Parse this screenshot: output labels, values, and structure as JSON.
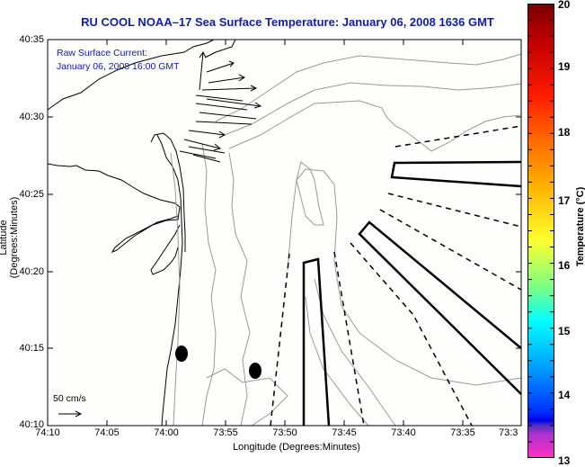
{
  "title": "RU COOL  NOAA–17  Sea Surface Temperature:  January 06, 2008 1636 GMT",
  "current_overlay": {
    "title": "Raw Surface Current:",
    "time": "January 06, 2008 16:00 GMT",
    "scale_label": "50 cm/s",
    "scale_arrow_icon": "right-arrow-icon"
  },
  "axes": {
    "xlabel": "Longitude (Degrees:Minutes)",
    "ylabel": "Latitude (Degrees:Minutes)",
    "xticks": [
      "74:10",
      "74:05",
      "74:00",
      "73:55",
      "73:50",
      "73:45",
      "73:40",
      "73:35",
      "73:3"
    ],
    "yticks": [
      "40:35",
      "40:30",
      "40:25",
      "40:20",
      "40:15",
      "40:10"
    ]
  },
  "colorbar": {
    "title": "Temperature (°C)",
    "ticks": [
      "20",
      "19",
      "18",
      "17",
      "16",
      "15",
      "14",
      "13"
    ],
    "range": [
      13,
      20
    ]
  },
  "map_features": {
    "buoys": 2,
    "shipping_lanes_solid": 3,
    "shipping_lanes_dashed_boundaries": 6
  }
}
